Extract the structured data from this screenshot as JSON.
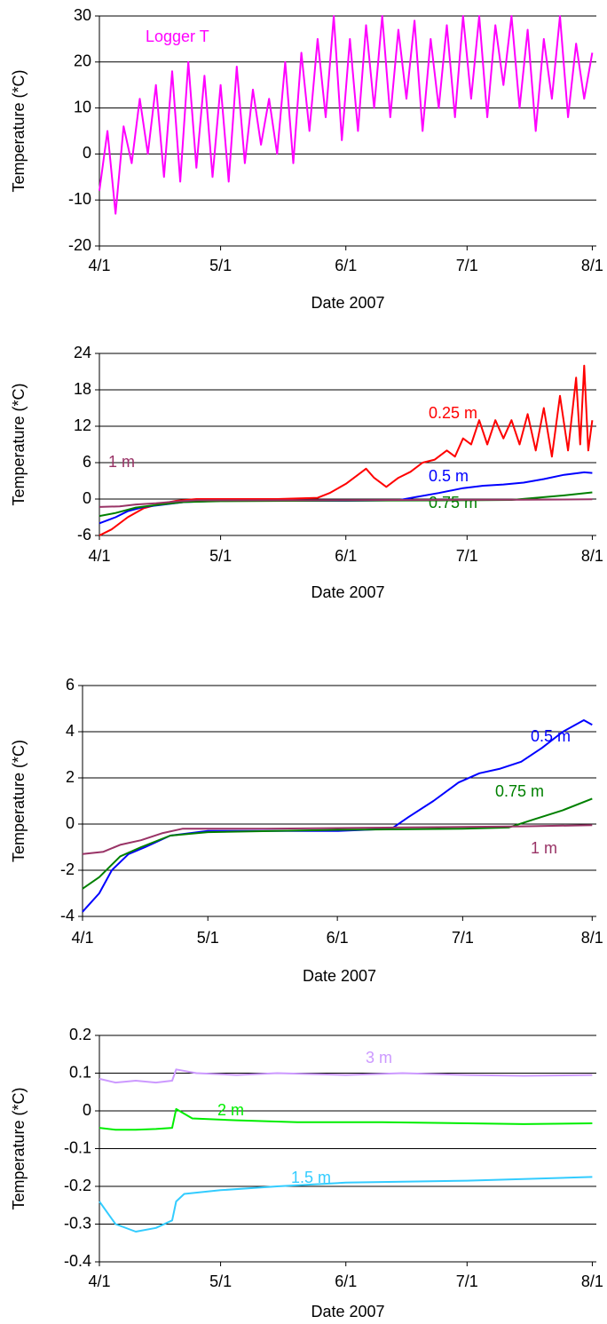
{
  "chart_data": [
    {
      "type": "line",
      "y_label": "Temperature (*C)",
      "x_label": "Date 2007",
      "xlim": [
        "4/1",
        "8/2"
      ],
      "xticks": [
        "4/1",
        "5/1",
        "6/1",
        "7/1",
        "8/1"
      ],
      "ylim": [
        -20,
        30
      ],
      "yticks": [
        -20,
        -10,
        0,
        10,
        20,
        30
      ],
      "grid": true,
      "series": [
        {
          "name": "Logger T",
          "color": "#ff00ff",
          "x": [
            "4/1",
            "4/3",
            "4/5",
            "4/7",
            "4/9",
            "4/11",
            "4/13",
            "4/15",
            "4/17",
            "4/19",
            "4/21",
            "4/23",
            "4/25",
            "4/27",
            "4/29",
            "5/1",
            "5/3",
            "5/5",
            "5/7",
            "5/9",
            "5/11",
            "5/13",
            "5/15",
            "5/17",
            "5/19",
            "5/21",
            "5/23",
            "5/25",
            "5/27",
            "5/29",
            "5/31",
            "6/2",
            "6/4",
            "6/6",
            "6/8",
            "6/10",
            "6/12",
            "6/14",
            "6/16",
            "6/18",
            "6/20",
            "6/22",
            "6/24",
            "6/26",
            "6/28",
            "6/30",
            "7/2",
            "7/4",
            "7/6",
            "7/8",
            "7/10",
            "7/12",
            "7/14",
            "7/16",
            "7/18",
            "7/20",
            "7/22",
            "7/24",
            "7/26",
            "7/28",
            "7/30",
            "8/1"
          ],
          "values": [
            -8,
            5,
            -13,
            6,
            -2,
            12,
            0,
            15,
            -5,
            18,
            -6,
            20,
            -3,
            17,
            -5,
            15,
            -6,
            19,
            -2,
            14,
            2,
            12,
            0,
            20,
            -2,
            22,
            5,
            25,
            8,
            30,
            3,
            25,
            5,
            28,
            10,
            30,
            8,
            27,
            12,
            29,
            5,
            25,
            10,
            28,
            8,
            30,
            12,
            30,
            8,
            28,
            15,
            30,
            10,
            27,
            5,
            25,
            12,
            30,
            8,
            24,
            12,
            22
          ]
        }
      ]
    },
    {
      "type": "line",
      "y_label": "Temperature (*C)",
      "x_label": "Date 2007",
      "xlim": [
        "4/1",
        "8/2"
      ],
      "xticks": [
        "4/1",
        "5/1",
        "6/1",
        "7/1",
        "8/1"
      ],
      "ylim": [
        -6,
        24
      ],
      "yticks": [
        -6,
        0,
        6,
        12,
        18,
        24
      ],
      "grid": true,
      "series": [
        {
          "name": "0.25 m",
          "color": "#ff0000",
          "x": [
            "4/1",
            "4/4",
            "4/8",
            "4/12",
            "4/16",
            "4/20",
            "4/25",
            "5/5",
            "5/15",
            "5/25",
            "5/28",
            "6/1",
            "6/4",
            "6/6",
            "6/8",
            "6/11",
            "6/14",
            "6/17",
            "6/20",
            "6/23",
            "6/26",
            "6/28",
            "6/30",
            "7/2",
            "7/4",
            "7/6",
            "7/8",
            "7/10",
            "7/12",
            "7/14",
            "7/16",
            "7/18",
            "7/20",
            "7/22",
            "7/24",
            "7/26",
            "7/28",
            "7/29",
            "7/30",
            "7/31",
            "8/1"
          ],
          "values": [
            -6,
            -5,
            -3,
            -1.5,
            -0.8,
            -0.3,
            0,
            0,
            0,
            0.2,
            1,
            2.5,
            4,
            5,
            3.5,
            2,
            3.5,
            4.5,
            6,
            6.5,
            8,
            7,
            10,
            9,
            13,
            9,
            13,
            10,
            13,
            9,
            14,
            8,
            15,
            7,
            17,
            8,
            20,
            9,
            22,
            8,
            13
          ]
        },
        {
          "name": "0.5 m",
          "color": "#0000ff",
          "x": [
            "4/1",
            "4/5",
            "4/8",
            "4/12",
            "4/16",
            "4/22",
            "5/1",
            "6/1",
            "6/14",
            "6/18",
            "6/24",
            "6/30",
            "7/5",
            "7/10",
            "7/15",
            "7/20",
            "7/25",
            "7/30",
            "8/1"
          ],
          "values": [
            -4,
            -3,
            -2,
            -1.3,
            -1,
            -0.5,
            -0.3,
            -0.3,
            -0.2,
            0.3,
            1,
            1.8,
            2.2,
            2.4,
            2.7,
            3.3,
            4,
            4.4,
            4.3
          ]
        },
        {
          "name": "0.75 m",
          "color": "#008000",
          "x": [
            "4/1",
            "4/5",
            "4/10",
            "4/15",
            "4/22",
            "5/1",
            "6/1",
            "7/1",
            "7/12",
            "7/18",
            "7/25",
            "8/1"
          ],
          "values": [
            -2.8,
            -2.3,
            -1.4,
            -1,
            -0.5,
            -0.35,
            -0.25,
            -0.2,
            -0.15,
            0.2,
            0.6,
            1.1
          ]
        },
        {
          "name": "1 m",
          "color": "#993366",
          "x": [
            "4/1",
            "4/6",
            "4/10",
            "4/15",
            "4/20",
            "4/25",
            "5/15",
            "6/15",
            "7/15",
            "8/1"
          ],
          "values": [
            -1.3,
            -1.2,
            -0.9,
            -0.7,
            -0.4,
            -0.2,
            -0.2,
            -0.15,
            -0.1,
            -0.05
          ]
        }
      ]
    },
    {
      "type": "line",
      "y_label": "Temperature (*C)",
      "x_label": "Date 2007",
      "xlim": [
        "4/1",
        "8/2"
      ],
      "xticks": [
        "4/1",
        "5/1",
        "6/1",
        "7/1",
        "8/1"
      ],
      "ylim": [
        -4,
        6
      ],
      "yticks": [
        -4,
        -2,
        0,
        2,
        4,
        6
      ],
      "grid": true,
      "series": [
        {
          "name": "0.5 m",
          "color": "#0000ff",
          "x": [
            "4/1",
            "4/5",
            "4/8",
            "4/12",
            "4/16",
            "4/22",
            "5/1",
            "6/1",
            "6/14",
            "6/18",
            "6/24",
            "6/30",
            "7/5",
            "7/10",
            "7/15",
            "7/20",
            "7/25",
            "7/30",
            "8/1"
          ],
          "values": [
            -3.8,
            -3,
            -2,
            -1.3,
            -1,
            -0.5,
            -0.3,
            -0.3,
            -0.2,
            0.3,
            1,
            1.8,
            2.2,
            2.4,
            2.7,
            3.3,
            4,
            4.5,
            4.3
          ]
        },
        {
          "name": "0.75 m",
          "color": "#008000",
          "x": [
            "4/1",
            "4/5",
            "4/10",
            "4/15",
            "4/22",
            "5/1",
            "6/1",
            "7/1",
            "7/12",
            "7/18",
            "7/25",
            "8/1"
          ],
          "values": [
            -2.8,
            -2.3,
            -1.4,
            -1,
            -0.5,
            -0.35,
            -0.25,
            -0.2,
            -0.15,
            0.2,
            0.6,
            1.1
          ]
        },
        {
          "name": "1 m",
          "color": "#993366",
          "x": [
            "4/1",
            "4/6",
            "4/10",
            "4/15",
            "4/20",
            "4/25",
            "5/15",
            "6/15",
            "7/15",
            "8/1"
          ],
          "values": [
            -1.3,
            -1.2,
            -0.9,
            -0.7,
            -0.4,
            -0.2,
            -0.2,
            -0.15,
            -0.1,
            -0.05
          ]
        }
      ]
    },
    {
      "type": "line",
      "y_label": "Temperature (*C)",
      "x_label": "Date 2007",
      "xlim": [
        "4/1",
        "8/2"
      ],
      "xticks": [
        "4/1",
        "5/1",
        "6/1",
        "7/1",
        "8/1"
      ],
      "ylim": [
        -0.4,
        0.2
      ],
      "yticks": [
        -0.4,
        -0.3,
        -0.2,
        -0.1,
        0,
        0.1,
        0.2
      ],
      "grid": true,
      "series": [
        {
          "name": "3 m",
          "color": "#cc99ff",
          "x": [
            "4/1",
            "4/5",
            "4/10",
            "4/15",
            "4/19",
            "4/20",
            "4/25",
            "5/5",
            "5/15",
            "6/1",
            "6/15",
            "7/1",
            "7/15",
            "8/1"
          ],
          "values": [
            0.085,
            0.075,
            0.08,
            0.075,
            0.08,
            0.11,
            0.1,
            0.095,
            0.1,
            0.095,
            0.1,
            0.095,
            0.093,
            0.095
          ]
        },
        {
          "name": "2 m",
          "color": "#00ee00",
          "x": [
            "4/1",
            "4/5",
            "4/10",
            "4/15",
            "4/19",
            "4/20",
            "4/24",
            "5/5",
            "5/20",
            "6/10",
            "7/1",
            "7/15",
            "8/1"
          ],
          "values": [
            -0.045,
            -0.05,
            -0.05,
            -0.048,
            -0.045,
            0.005,
            -0.02,
            -0.025,
            -0.03,
            -0.03,
            -0.033,
            -0.035,
            -0.033
          ]
        },
        {
          "name": "1.5 m",
          "color": "#33ccff",
          "x": [
            "4/1",
            "4/5",
            "4/10",
            "4/15",
            "4/19",
            "4/20",
            "4/22",
            "5/1",
            "5/15",
            "6/1",
            "7/1",
            "8/1"
          ],
          "values": [
            -0.24,
            -0.3,
            -0.32,
            -0.31,
            -0.29,
            -0.24,
            -0.22,
            -0.21,
            -0.2,
            -0.19,
            -0.185,
            -0.175
          ]
        }
      ]
    }
  ]
}
